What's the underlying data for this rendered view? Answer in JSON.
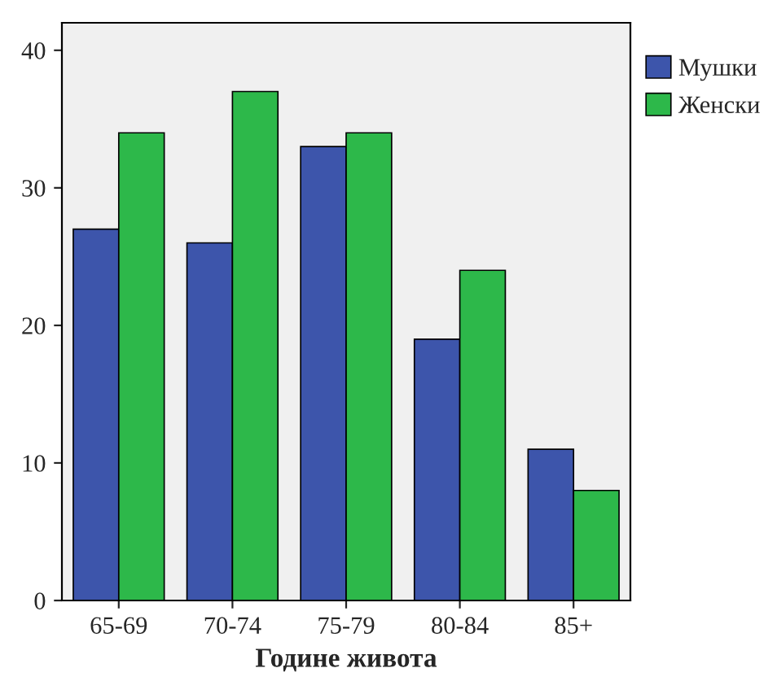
{
  "chart_data": {
    "type": "bar",
    "xlabel": "Године живота",
    "categories": [
      "65-69",
      "70-74",
      "75-79",
      "80-84",
      "85+"
    ],
    "series": [
      {
        "name": "Мушки",
        "color": "#3d55ab",
        "values": [
          27,
          26,
          33,
          19,
          11
        ]
      },
      {
        "name": "Женски",
        "color": "#2db84a",
        "values": [
          34,
          37,
          34,
          24,
          8
        ]
      }
    ],
    "ylim": [
      0,
      42
    ],
    "yticks": [
      0,
      10,
      20,
      30,
      40
    ],
    "grid": false,
    "legend": "right"
  }
}
